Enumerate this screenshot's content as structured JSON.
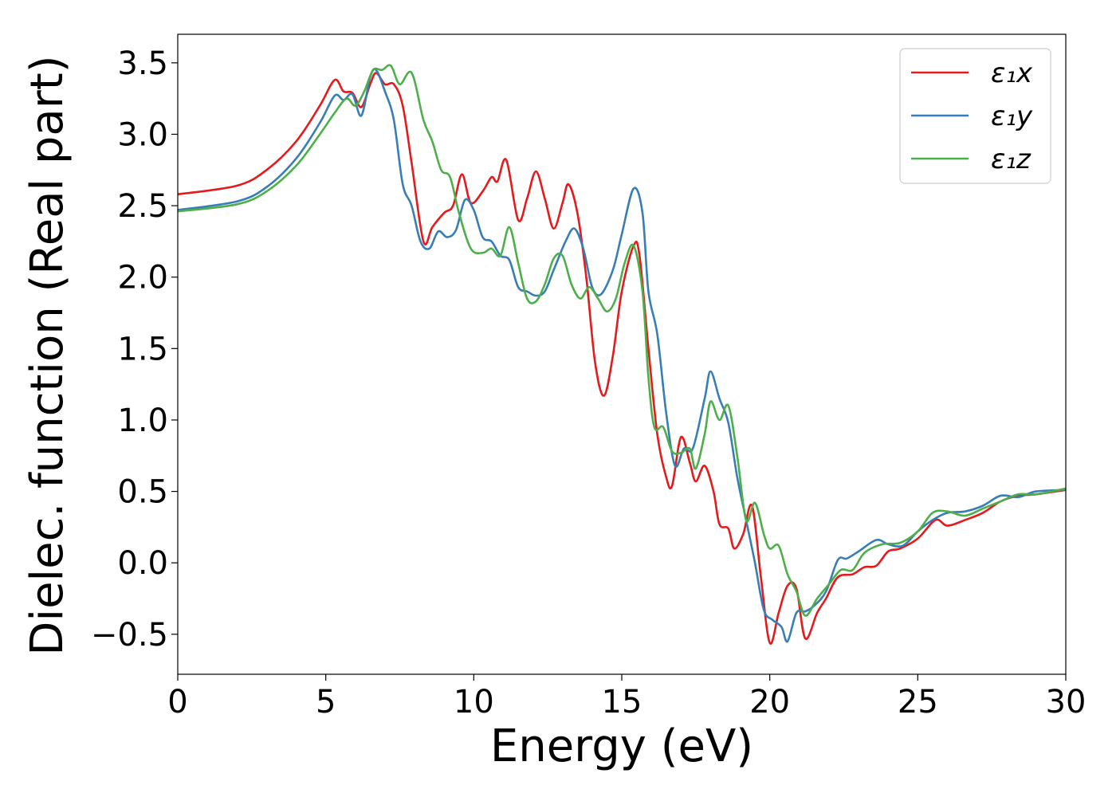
{
  "chart_data": {
    "type": "line",
    "title": "",
    "xlabel": "Energy (eV)",
    "ylabel": "Dielec. function (Real part)",
    "xlim": [
      0,
      30
    ],
    "ylim": [
      -0.78,
      3.7
    ],
    "xticks": [
      0,
      5,
      10,
      15,
      20,
      25,
      30
    ],
    "xtick_labels": [
      "0",
      "5",
      "10",
      "15",
      "20",
      "25",
      "30"
    ],
    "yticks": [
      -0.5,
      0.0,
      0.5,
      1.0,
      1.5,
      2.0,
      2.5,
      3.0,
      3.5
    ],
    "ytick_labels": [
      "−0.5",
      "0.0",
      "0.5",
      "1.0",
      "1.5",
      "2.0",
      "2.5",
      "3.0",
      "3.5"
    ],
    "grid": false,
    "legend_position": "top-right",
    "series": [
      {
        "name": "ε₁x",
        "color": "#e41a1c",
        "points": [
          [
            0,
            2.58
          ],
          [
            2,
            2.64
          ],
          [
            3,
            2.75
          ],
          [
            4,
            2.95
          ],
          [
            4.8,
            3.2
          ],
          [
            5.3,
            3.38
          ],
          [
            5.6,
            3.3
          ],
          [
            5.9,
            3.29
          ],
          [
            6.2,
            3.19
          ],
          [
            6.5,
            3.35
          ],
          [
            6.7,
            3.43
          ],
          [
            7.0,
            3.35
          ],
          [
            7.3,
            3.35
          ],
          [
            7.6,
            3.2
          ],
          [
            7.9,
            2.8
          ],
          [
            8.3,
            2.25
          ],
          [
            8.6,
            2.35
          ],
          [
            9.0,
            2.45
          ],
          [
            9.3,
            2.5
          ],
          [
            9.6,
            2.72
          ],
          [
            9.9,
            2.52
          ],
          [
            10.3,
            2.6
          ],
          [
            10.6,
            2.7
          ],
          [
            10.8,
            2.67
          ],
          [
            11.1,
            2.82
          ],
          [
            11.5,
            2.4
          ],
          [
            11.8,
            2.55
          ],
          [
            12.1,
            2.74
          ],
          [
            12.4,
            2.55
          ],
          [
            12.7,
            2.34
          ],
          [
            13.0,
            2.52
          ],
          [
            13.2,
            2.65
          ],
          [
            13.5,
            2.45
          ],
          [
            13.8,
            2.0
          ],
          [
            14.1,
            1.4
          ],
          [
            14.4,
            1.17
          ],
          [
            14.7,
            1.45
          ],
          [
            15.0,
            1.9
          ],
          [
            15.4,
            2.22
          ],
          [
            15.6,
            2.15
          ],
          [
            15.9,
            1.5
          ],
          [
            16.2,
            0.9
          ],
          [
            16.5,
            0.6
          ],
          [
            16.7,
            0.54
          ],
          [
            17.0,
            0.88
          ],
          [
            17.3,
            0.7
          ],
          [
            17.5,
            0.57
          ],
          [
            17.8,
            0.68
          ],
          [
            18.1,
            0.5
          ],
          [
            18.3,
            0.27
          ],
          [
            18.6,
            0.24
          ],
          [
            18.8,
            0.1
          ],
          [
            19.1,
            0.2
          ],
          [
            19.4,
            0.4
          ],
          [
            19.7,
            -0.1
          ],
          [
            20.0,
            -0.56
          ],
          [
            20.3,
            -0.35
          ],
          [
            20.6,
            -0.16
          ],
          [
            20.9,
            -0.18
          ],
          [
            21.2,
            -0.53
          ],
          [
            21.6,
            -0.35
          ],
          [
            21.9,
            -0.25
          ],
          [
            22.3,
            -0.1
          ],
          [
            22.8,
            -0.08
          ],
          [
            23.2,
            -0.03
          ],
          [
            23.6,
            -0.02
          ],
          [
            24.0,
            0.08
          ],
          [
            24.4,
            0.1
          ],
          [
            25.0,
            0.17
          ],
          [
            25.6,
            0.3
          ],
          [
            26.0,
            0.26
          ],
          [
            26.6,
            0.3
          ],
          [
            27.2,
            0.35
          ],
          [
            27.8,
            0.43
          ],
          [
            28.4,
            0.47
          ],
          [
            29.0,
            0.48
          ],
          [
            30,
            0.51
          ]
        ]
      },
      {
        "name": "ε₁y",
        "color": "#377eb8",
        "points": [
          [
            0,
            2.47
          ],
          [
            2,
            2.53
          ],
          [
            3,
            2.63
          ],
          [
            4,
            2.83
          ],
          [
            4.8,
            3.08
          ],
          [
            5.3,
            3.27
          ],
          [
            5.6,
            3.24
          ],
          [
            5.9,
            3.28
          ],
          [
            6.2,
            3.13
          ],
          [
            6.5,
            3.4
          ],
          [
            6.7,
            3.45
          ],
          [
            7.0,
            3.3
          ],
          [
            7.3,
            3.1
          ],
          [
            7.6,
            2.65
          ],
          [
            7.9,
            2.5
          ],
          [
            8.2,
            2.25
          ],
          [
            8.5,
            2.2
          ],
          [
            8.8,
            2.32
          ],
          [
            9.1,
            2.28
          ],
          [
            9.4,
            2.33
          ],
          [
            9.7,
            2.54
          ],
          [
            10.0,
            2.47
          ],
          [
            10.3,
            2.28
          ],
          [
            10.6,
            2.25
          ],
          [
            10.9,
            2.15
          ],
          [
            11.2,
            2.12
          ],
          [
            11.5,
            1.93
          ],
          [
            11.8,
            1.9
          ],
          [
            12.1,
            1.87
          ],
          [
            12.4,
            1.9
          ],
          [
            12.7,
            2.05
          ],
          [
            13.1,
            2.25
          ],
          [
            13.4,
            2.34
          ],
          [
            13.7,
            2.2
          ],
          [
            14.0,
            1.93
          ],
          [
            14.3,
            1.88
          ],
          [
            14.7,
            2.05
          ],
          [
            15.0,
            2.3
          ],
          [
            15.4,
            2.62
          ],
          [
            15.7,
            2.45
          ],
          [
            15.9,
            1.9
          ],
          [
            16.2,
            1.6
          ],
          [
            16.5,
            1.05
          ],
          [
            16.8,
            0.68
          ],
          [
            17.1,
            0.8
          ],
          [
            17.4,
            0.8
          ],
          [
            17.8,
            1.15
          ],
          [
            18.0,
            1.34
          ],
          [
            18.3,
            1.15
          ],
          [
            18.6,
            0.98
          ],
          [
            18.9,
            0.6
          ],
          [
            19.2,
            0.3
          ],
          [
            19.5,
            0.0
          ],
          [
            19.8,
            -0.33
          ],
          [
            20.1,
            -0.4
          ],
          [
            20.4,
            -0.45
          ],
          [
            20.6,
            -0.55
          ],
          [
            20.9,
            -0.35
          ],
          [
            21.2,
            -0.34
          ],
          [
            21.5,
            -0.3
          ],
          [
            21.9,
            -0.2
          ],
          [
            22.3,
            0.02
          ],
          [
            22.6,
            0.03
          ],
          [
            23.0,
            0.08
          ],
          [
            23.6,
            0.16
          ],
          [
            24.0,
            0.13
          ],
          [
            24.5,
            0.12
          ],
          [
            25.0,
            0.22
          ],
          [
            25.5,
            0.3
          ],
          [
            26.0,
            0.35
          ],
          [
            26.6,
            0.36
          ],
          [
            27.2,
            0.4
          ],
          [
            27.8,
            0.47
          ],
          [
            28.4,
            0.46
          ],
          [
            29.0,
            0.5
          ],
          [
            30,
            0.51
          ]
        ]
      },
      {
        "name": "ε₁z",
        "color": "#4daf4a",
        "points": [
          [
            0,
            2.46
          ],
          [
            2,
            2.51
          ],
          [
            3,
            2.6
          ],
          [
            4,
            2.78
          ],
          [
            4.8,
            3.0
          ],
          [
            5.3,
            3.15
          ],
          [
            5.7,
            3.25
          ],
          [
            6.0,
            3.2
          ],
          [
            6.3,
            3.3
          ],
          [
            6.6,
            3.45
          ],
          [
            6.9,
            3.45
          ],
          [
            7.2,
            3.48
          ],
          [
            7.5,
            3.35
          ],
          [
            7.9,
            3.43
          ],
          [
            8.3,
            3.1
          ],
          [
            8.6,
            2.95
          ],
          [
            8.9,
            2.75
          ],
          [
            9.2,
            2.7
          ],
          [
            9.5,
            2.45
          ],
          [
            9.9,
            2.2
          ],
          [
            10.3,
            2.17
          ],
          [
            10.6,
            2.2
          ],
          [
            10.9,
            2.15
          ],
          [
            11.2,
            2.35
          ],
          [
            11.5,
            2.1
          ],
          [
            11.8,
            1.85
          ],
          [
            12.1,
            1.83
          ],
          [
            12.4,
            1.95
          ],
          [
            12.7,
            2.13
          ],
          [
            13.0,
            2.15
          ],
          [
            13.3,
            1.95
          ],
          [
            13.6,
            1.85
          ],
          [
            13.9,
            1.93
          ],
          [
            14.2,
            1.85
          ],
          [
            14.5,
            1.76
          ],
          [
            14.8,
            1.85
          ],
          [
            15.1,
            2.1
          ],
          [
            15.4,
            2.22
          ],
          [
            15.7,
            1.9
          ],
          [
            15.9,
            1.3
          ],
          [
            16.1,
            0.95
          ],
          [
            16.4,
            0.95
          ],
          [
            16.7,
            0.78
          ],
          [
            17.0,
            0.77
          ],
          [
            17.3,
            0.8
          ],
          [
            17.5,
            0.66
          ],
          [
            17.8,
            0.9
          ],
          [
            18.0,
            1.13
          ],
          [
            18.3,
            1.0
          ],
          [
            18.6,
            1.1
          ],
          [
            18.9,
            0.75
          ],
          [
            19.2,
            0.3
          ],
          [
            19.5,
            0.42
          ],
          [
            19.8,
            0.2
          ],
          [
            20.0,
            0.1
          ],
          [
            20.3,
            0.12
          ],
          [
            20.6,
            -0.08
          ],
          [
            20.9,
            -0.2
          ],
          [
            21.2,
            -0.37
          ],
          [
            21.6,
            -0.25
          ],
          [
            22.0,
            -0.15
          ],
          [
            22.4,
            -0.05
          ],
          [
            22.8,
            -0.05
          ],
          [
            23.2,
            0.07
          ],
          [
            23.8,
            0.13
          ],
          [
            24.4,
            0.14
          ],
          [
            25.0,
            0.22
          ],
          [
            25.5,
            0.35
          ],
          [
            26.0,
            0.36
          ],
          [
            26.6,
            0.33
          ],
          [
            27.2,
            0.38
          ],
          [
            27.8,
            0.43
          ],
          [
            28.4,
            0.48
          ],
          [
            29.0,
            0.48
          ],
          [
            30,
            0.52
          ]
        ]
      }
    ]
  }
}
